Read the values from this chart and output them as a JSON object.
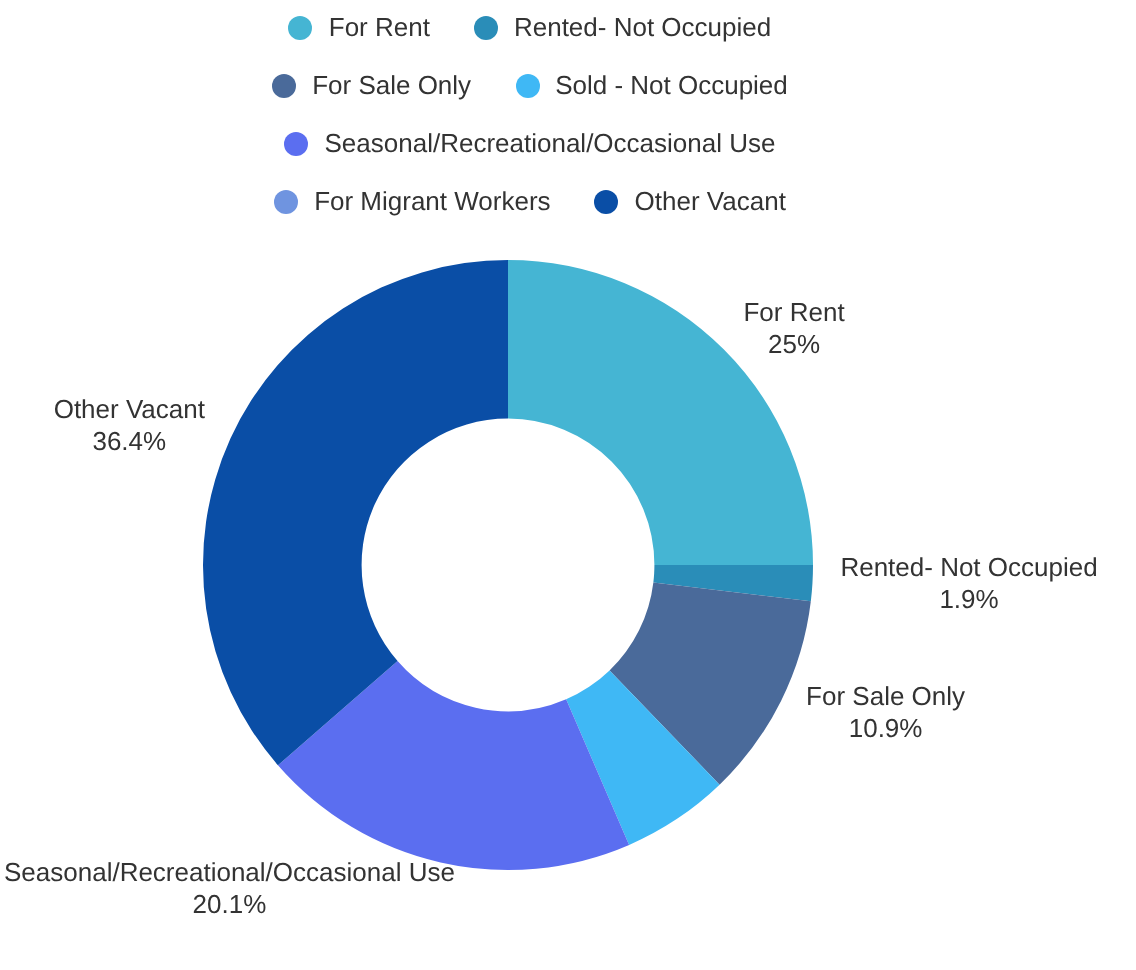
{
  "chart_data": {
    "type": "donut",
    "categories": [
      "For Rent",
      "Rented- Not Occupied",
      "For Sale Only",
      "Sold - Not Occupied",
      "Seasonal/Recreational/Occasional Use",
      "For Migrant Workers",
      "Other Vacant"
    ],
    "values": [
      25,
      1.9,
      10.9,
      5.7,
      20.1,
      0,
      36.4
    ],
    "value_labels": [
      "25%",
      "1.9%",
      "10.9%",
      null,
      "20.1%",
      null,
      "36.4%"
    ],
    "colors": [
      "#45b5d3",
      "#2a8db8",
      "#4a6a9a",
      "#3fb8f5",
      "#5b6ef0",
      "#6f94e0",
      "#0a4ea6"
    ],
    "legend": "top"
  }
}
